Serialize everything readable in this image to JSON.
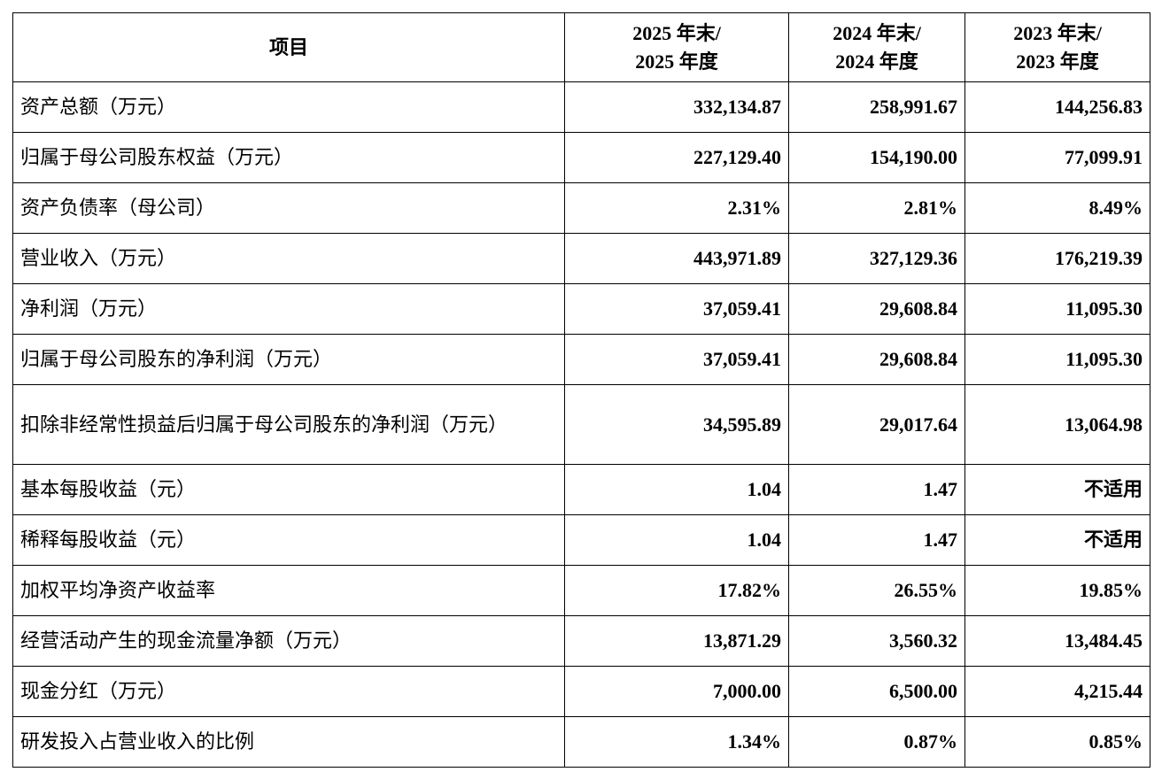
{
  "table": {
    "header": {
      "item": "项目",
      "y2025": "2025 年末/\n2025 年度",
      "y2024": "2024 年末/\n2024 年度",
      "y2023": "2023 年末/\n2023 年度"
    },
    "rows": [
      {
        "label": "资产总额（万元）",
        "v2025": "332,134.87",
        "v2024": "258,991.67",
        "v2023": "144,256.83"
      },
      {
        "label": "归属于母公司股东权益（万元）",
        "v2025": "227,129.40",
        "v2024": "154,190.00",
        "v2023": "77,099.91"
      },
      {
        "label": "资产负债率（母公司）",
        "v2025": "2.31%",
        "v2024": "2.81%",
        "v2023": "8.49%"
      },
      {
        "label": "营业收入（万元）",
        "v2025": "443,971.89",
        "v2024": "327,129.36",
        "v2023": "176,219.39"
      },
      {
        "label": "净利润（万元）",
        "v2025": "37,059.41",
        "v2024": "29,608.84",
        "v2023": "11,095.30"
      },
      {
        "label": "归属于母公司股东的净利润（万元）",
        "v2025": "37,059.41",
        "v2024": "29,608.84",
        "v2023": "11,095.30"
      },
      {
        "label": "扣除非经常性损益后归属于母公司股东的净利润（万元）",
        "v2025": "34,595.89",
        "v2024": "29,017.64",
        "v2023": "13,064.98"
      },
      {
        "label": "基本每股收益（元）",
        "v2025": "1.04",
        "v2024": "1.47",
        "v2023": "不适用"
      },
      {
        "label": "稀释每股收益（元）",
        "v2025": "1.04",
        "v2024": "1.47",
        "v2023": "不适用"
      },
      {
        "label": "加权平均净资产收益率",
        "v2025": "17.82%",
        "v2024": "26.55%",
        "v2023": "19.85%"
      },
      {
        "label": "经营活动产生的现金流量净额（万元）",
        "v2025": "13,871.29",
        "v2024": "3,560.32",
        "v2023": "13,484.45"
      },
      {
        "label": "现金分红（万元）",
        "v2025": "7,000.00",
        "v2024": "6,500.00",
        "v2023": "4,215.44"
      },
      {
        "label": "研发投入占营业收入的比例",
        "v2025": "1.34%",
        "v2024": "0.87%",
        "v2023": "0.85%"
      }
    ]
  }
}
